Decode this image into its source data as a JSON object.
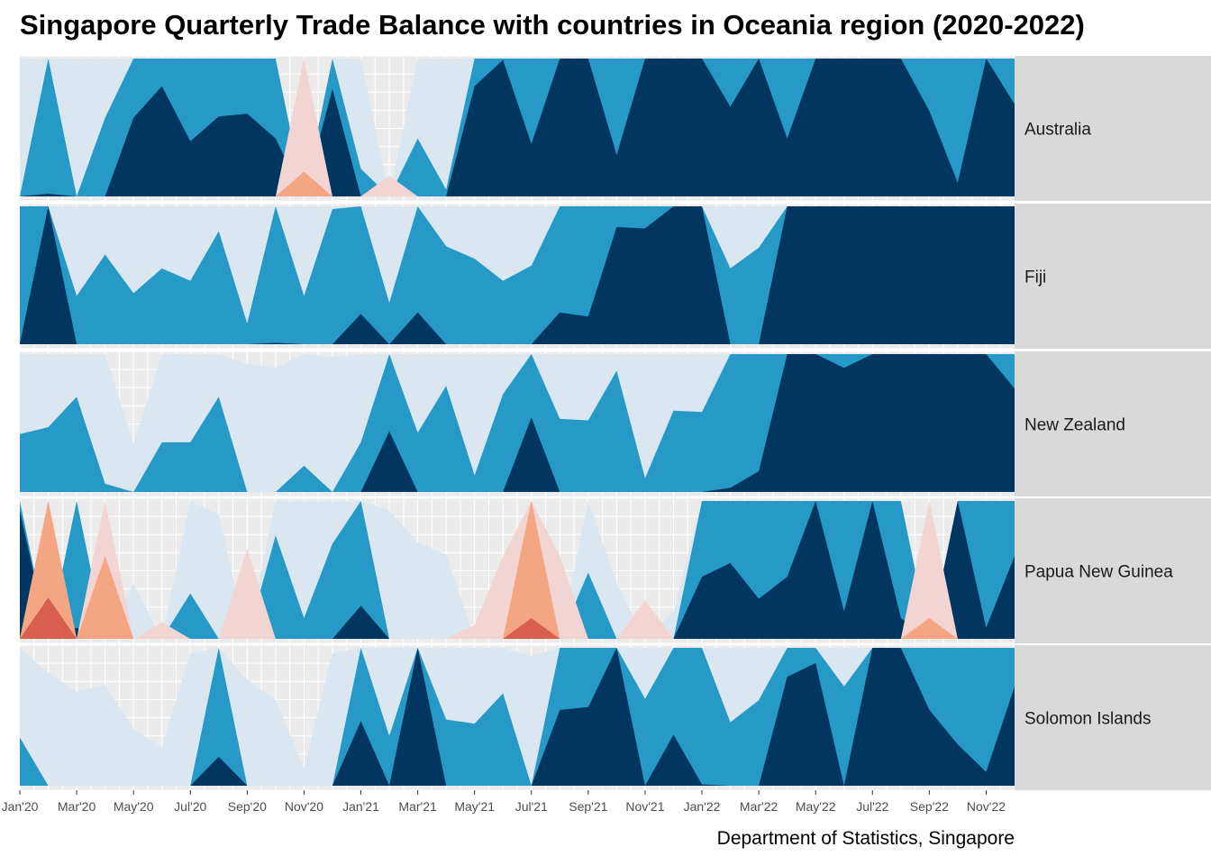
{
  "title": "Singapore Quarterly Trade Balance with countries in Oceania region (2020-2022)",
  "caption": "Department of Statistics, Singapore",
  "chart_data": {
    "type": "area",
    "subtype": "horizon",
    "note_bands": "values are monthly horizon-band levels from -3 (darkest red) to +3 (darkest blue)",
    "x": [
      "Jan'20",
      "Feb'20",
      "Mar'20",
      "Apr'20",
      "May'20",
      "Jun'20",
      "Jul'20",
      "Aug'20",
      "Sep'20",
      "Oct'20",
      "Nov'20",
      "Dec'20",
      "Jan'21",
      "Feb'21",
      "Mar'21",
      "Apr'21",
      "May'21",
      "Jun'21",
      "Jul'21",
      "Aug'21",
      "Sep'21",
      "Oct'21",
      "Nov'21",
      "Dec'21",
      "Jan'22",
      "Feb'22",
      "Mar'22",
      "Apr'22",
      "May'22",
      "Jun'22",
      "Jul'22",
      "Aug'22",
      "Sep'22",
      "Oct'22",
      "Nov'22",
      "Dec'22"
    ],
    "x_tick_labels": [
      "Jan'20",
      "Mar'20",
      "May'20",
      "Jul'20",
      "Sep'20",
      "Nov'20",
      "Jan'21",
      "Mar'21",
      "May'21",
      "Jul'21",
      "Sep'21",
      "Nov'21",
      "Jan'22",
      "Mar'22",
      "May'22",
      "Jul'22",
      "Sep'22",
      "Nov'22"
    ],
    "band_colors": {
      "neg3": "#d6604d",
      "neg2": "#f4a582",
      "neg1": "#f2d4d2",
      "pos1": "#dae6f0",
      "pos2": "#2699c6",
      "pos3": "#003660"
    },
    "panel_background": "#ebebeb",
    "strip_background": "#d9d9d9",
    "grid": true,
    "legend": "none",
    "series": [
      {
        "name": "Australia",
        "values": [
          1.0,
          2.02,
          1.0,
          1.57,
          2.57,
          2.8,
          2.4,
          2.58,
          2.6,
          2.42,
          -1.18,
          2.78,
          1.2,
          -0.15,
          1.42,
          1.05,
          2.8,
          2.99,
          2.38,
          3.0,
          3.0,
          2.3,
          3.0,
          3.0,
          3.0,
          2.65,
          3.0,
          2.42,
          3.0,
          3.0,
          3.0,
          3.0,
          2.62,
          2.1,
          3.0,
          2.67
        ]
      },
      {
        "name": "Fiji",
        "values": [
          2.0,
          3.0,
          1.35,
          1.65,
          1.37,
          1.55,
          1.46,
          1.82,
          1.15,
          2.01,
          1.35,
          1.98,
          2.22,
          1.3,
          2.23,
          1.71,
          1.62,
          1.46,
          1.57,
          2.23,
          2.2,
          2.85,
          2.84,
          3.0,
          3.0,
          1.55,
          1.7,
          3.0,
          3.0,
          3.0,
          3.0,
          3.0,
          3.0,
          3.0,
          3.0,
          3.0
        ]
      },
      {
        "name": "New Zealand",
        "values": [
          1.42,
          1.47,
          1.69,
          1.06,
          0.35,
          1.36,
          1.36,
          1.69,
          0.93,
          0.9,
          1.19,
          0.98,
          1.36,
          2.44,
          1.43,
          1.77,
          1.12,
          1.71,
          2.54,
          1.53,
          1.52,
          1.88,
          1.1,
          1.59,
          1.58,
          2.03,
          2.15,
          3.0,
          3.0,
          2.9,
          3.0,
          3.0,
          3.0,
          3.0,
          3.0,
          2.75
        ]
      },
      {
        "name": "Papua New Guinea",
        "values": [
          2.93,
          -2.3,
          2.08,
          -1.6,
          0.4,
          -0.12,
          1.33,
          0.9,
          -0.65,
          1.75,
          1.15,
          1.69,
          2.24,
          0.93,
          0.7,
          0.61,
          -0.1,
          -0.6,
          -2.15,
          -0.6,
          1.48,
          0.4,
          -0.28,
          0.2,
          2.45,
          2.55,
          2.29,
          2.45,
          3.0,
          2.2,
          3.0,
          2.15,
          -1.15,
          3.0,
          2.08,
          2.6
        ]
      },
      {
        "name": "Solomon Islands",
        "values": [
          1.35,
          0.82,
          0.68,
          0.73,
          0.41,
          0.28,
          0.96,
          2.21,
          0.77,
          0.62,
          0.13,
          0.96,
          2.47,
          1.36,
          3.0,
          1.48,
          1.45,
          1.67,
          0.94,
          2.55,
          2.57,
          3.0,
          1.63,
          2.37,
          2.01,
          1.46,
          1.62,
          2.79,
          2.89,
          1.72,
          3.0,
          3.0,
          2.55,
          2.3,
          2.1,
          2.72
        ]
      }
    ]
  }
}
